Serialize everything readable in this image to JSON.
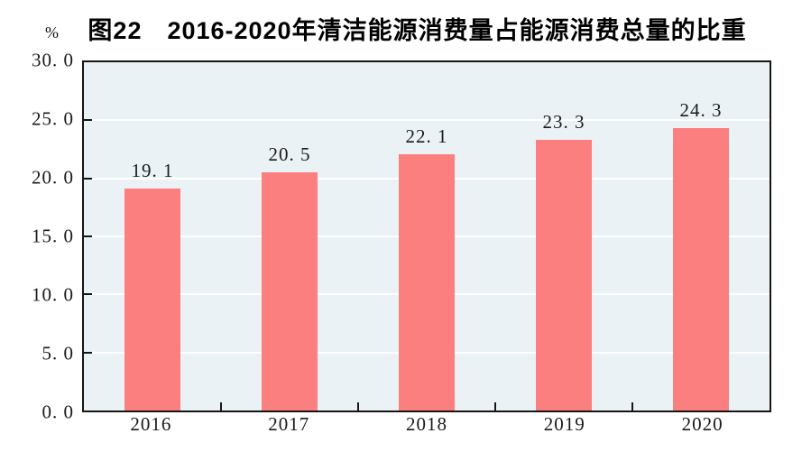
{
  "figure": {
    "title": "图22　2016-2020年清洁能源消费量占能源消费总量的比重",
    "unit_label": "%"
  },
  "colors": {
    "bar": "#fb7f7f",
    "plot_bg": "#ebf2f5",
    "grid": "#ffffff",
    "axis": "#161616",
    "text": "#1a1a1a",
    "page_bg": "#ffffff"
  },
  "chart_data": {
    "type": "bar",
    "title": "图22　2016-2020年清洁能源消费量占能源消费总量的比重",
    "categories": [
      "2016",
      "2017",
      "2018",
      "2019",
      "2020"
    ],
    "values": [
      19.1,
      20.5,
      22.1,
      23.3,
      24.3
    ],
    "value_labels": [
      "19. 1",
      "20. 5",
      "22. 1",
      "23. 3",
      "24. 3"
    ],
    "xlabel": "",
    "ylabel": "%",
    "ylim": [
      0,
      30
    ],
    "ytick_interval": 5,
    "yticks": [
      0,
      5,
      10,
      15,
      20,
      25,
      30
    ],
    "ytick_labels": [
      "0. 0",
      "5. 0",
      "10. 0",
      "15. 0",
      "20. 0",
      "25. 0",
      "30. 0"
    ],
    "grid": true,
    "legend": false
  }
}
